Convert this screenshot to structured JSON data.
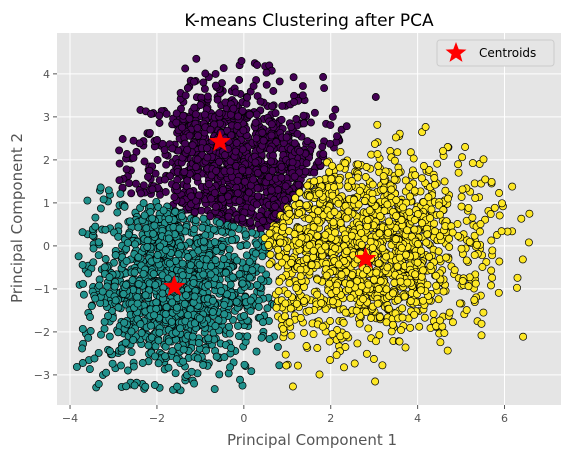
{
  "chart_data": {
    "type": "scatter",
    "title": "K-means Clustering after PCA",
    "xlabel": "Principal Component 1",
    "ylabel": "Principal Component 2",
    "xlim": [
      -4.3,
      7.3
    ],
    "ylim": [
      -3.7,
      4.95
    ],
    "xticks": [
      -4,
      -2,
      0,
      2,
      4,
      6
    ],
    "yticks": [
      -3,
      -2,
      -1,
      0,
      1,
      2,
      3,
      4
    ],
    "grid": true,
    "legend_placement": "top-right",
    "background_color": "#E5E5E5",
    "grid_color": "#FFFFFF",
    "marker_edge_color": "#000000",
    "clusters": [
      {
        "color": "#440154",
        "approx_points": 1400,
        "centroid": [
          -0.55,
          2.42
        ],
        "x_range": [
          -3.7,
          2.5
        ],
        "y_range": [
          0.05,
          4.5
        ]
      },
      {
        "color": "#21918C",
        "approx_points": 2200,
        "centroid": [
          -1.6,
          -0.95
        ],
        "x_range": [
          -3.85,
          1.1
        ],
        "y_range": [
          -3.35,
          1.45
        ]
      },
      {
        "color": "#FDE725",
        "approx_points": 1900,
        "centroid": [
          2.8,
          -0.3
        ],
        "x_range": [
          0.5,
          6.7
        ],
        "y_range": [
          -3.25,
          2.95
        ]
      }
    ],
    "centroids": {
      "label": "Centroids",
      "color": "#FF0000",
      "marker": "star",
      "points": [
        {
          "x": -0.55,
          "y": 2.42
        },
        {
          "x": -1.6,
          "y": -0.95
        },
        {
          "x": 2.8,
          "y": -0.3
        }
      ]
    }
  }
}
